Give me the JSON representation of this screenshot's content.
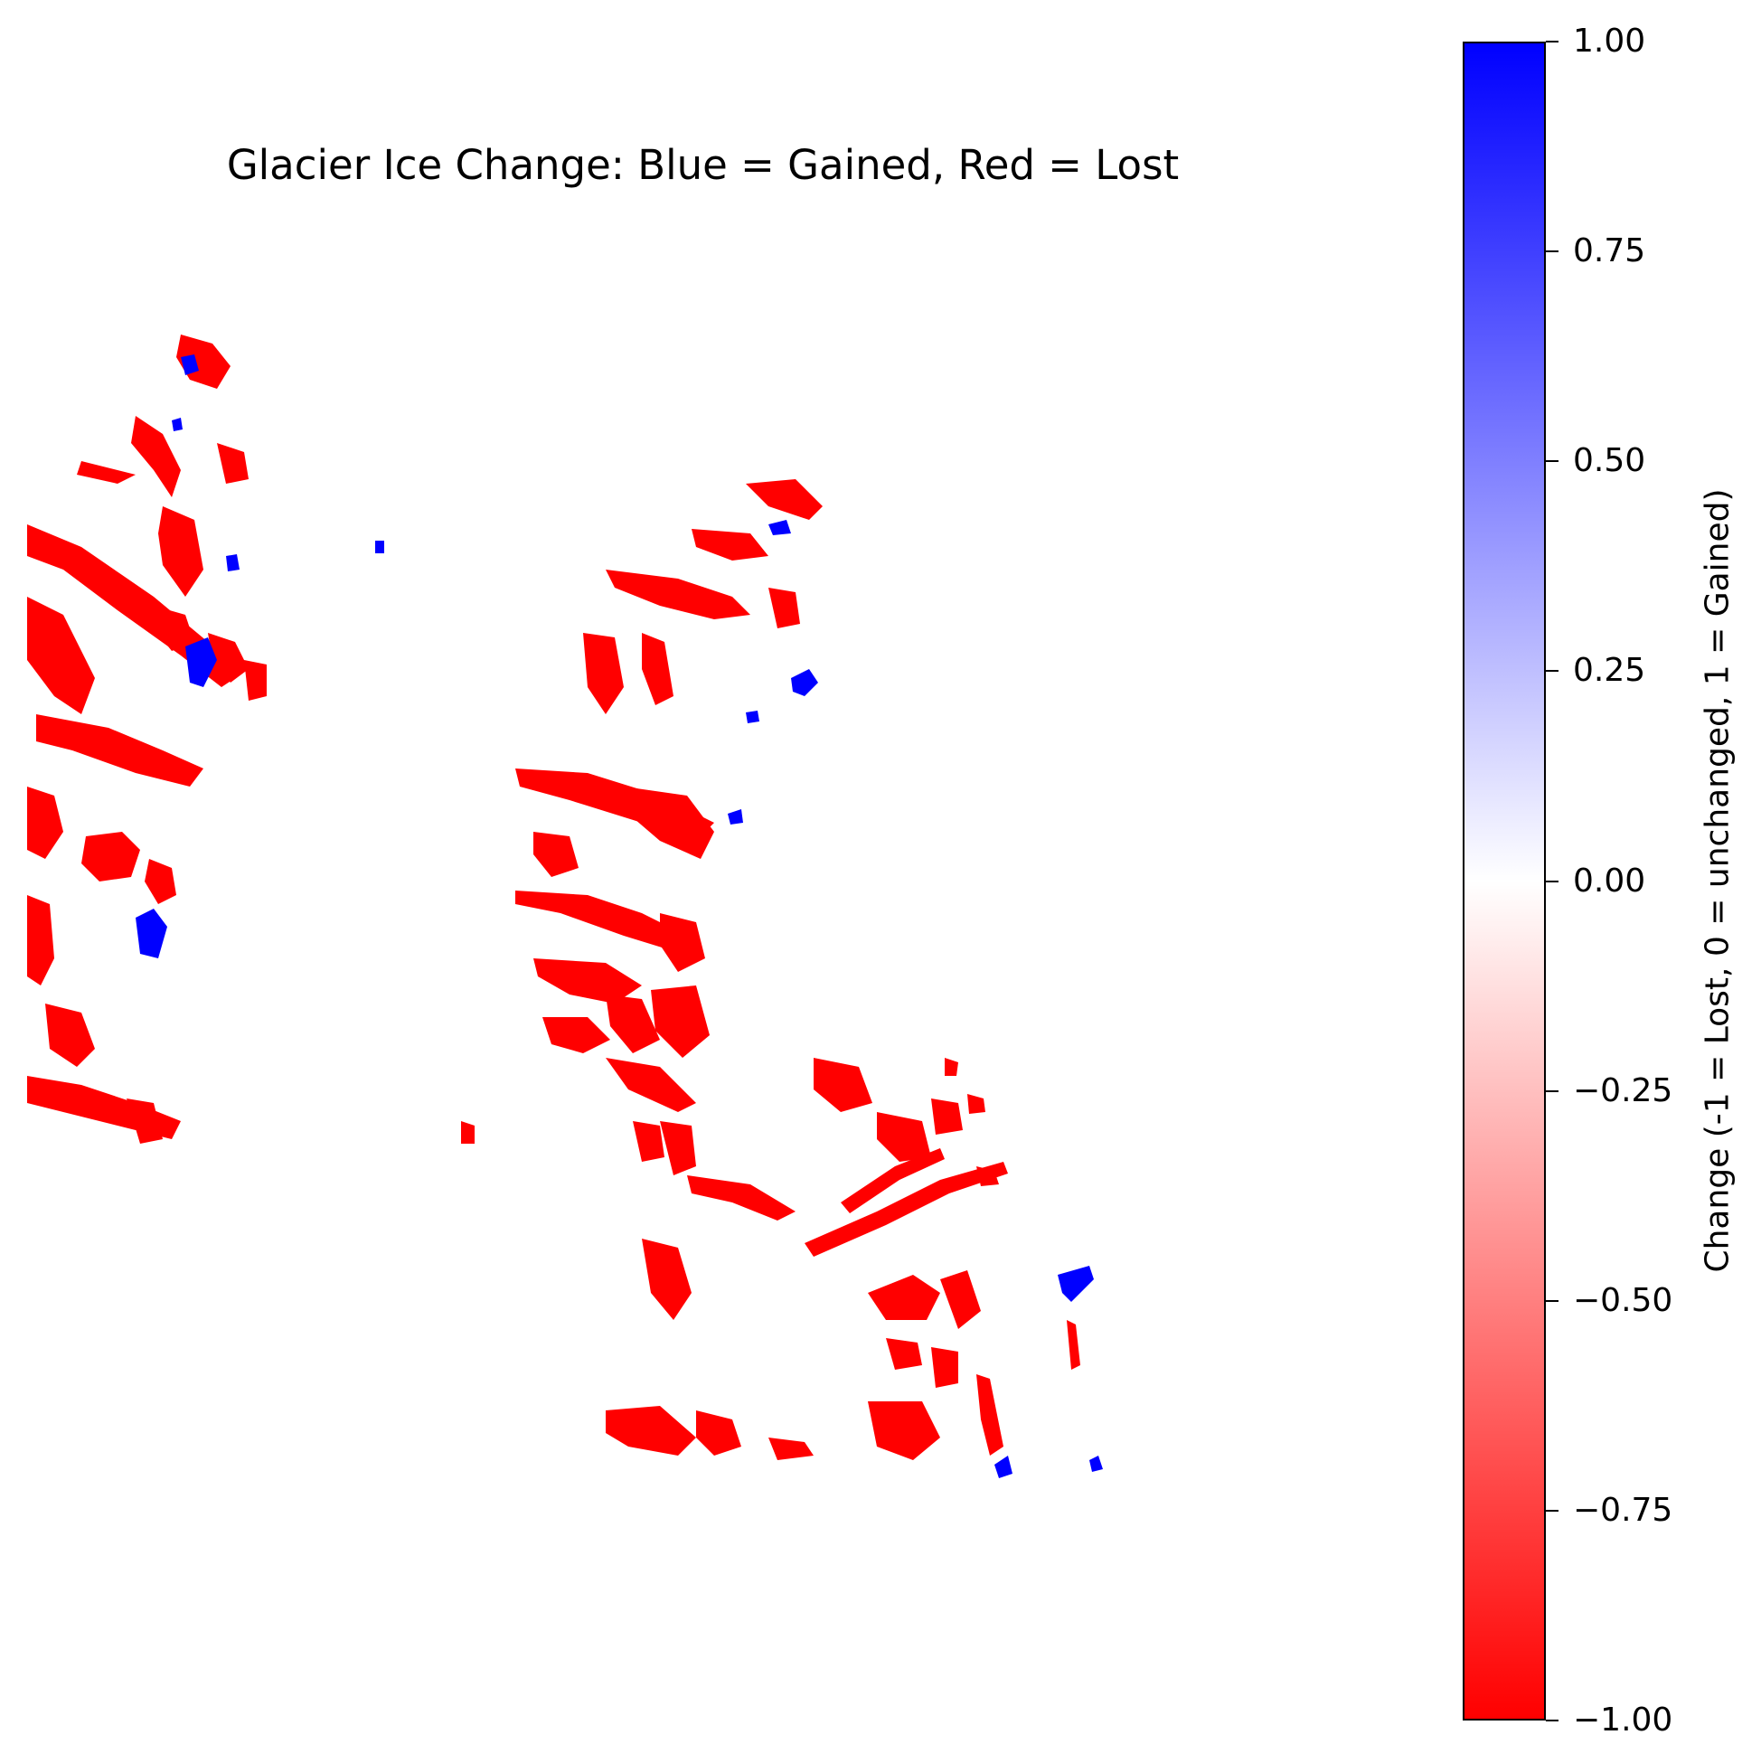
{
  "chart_data": {
    "type": "heatmap",
    "title": "Glacier Ice Change: Blue = Gained, Red = Lost",
    "xlabel": "",
    "ylabel": "",
    "axes_visible": false,
    "value_meaning": {
      "-1": "Lost",
      "0": "unchanged",
      "1": "Gained"
    },
    "colormap": {
      "min_color": "#ff0000",
      "mid_color": "#ffffff",
      "max_color": "#0000ff"
    },
    "colorbar": {
      "label": "Change (-1 = Lost, 0 = unchanged, 1 = Gained)",
      "range": [
        -1.0,
        1.0
      ],
      "ticks": [
        1.0,
        0.75,
        0.5,
        0.25,
        0.0,
        -0.25,
        -0.5,
        -0.75,
        -1.0
      ],
      "tick_labels": [
        "1.00",
        "0.75",
        "0.50",
        "0.25",
        "0.00",
        "−0.25",
        "−0.50",
        "−0.75",
        "−1.00"
      ],
      "placement": "right"
    }
  }
}
